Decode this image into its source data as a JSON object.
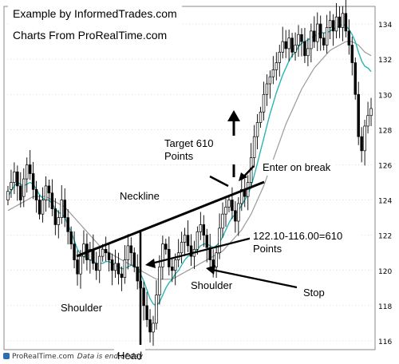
{
  "credits": {
    "line1": "Example by InformedTrades.com",
    "line2": "Charts From ProRealTime.com"
  },
  "footer": {
    "source": "ProRealTime.com",
    "note": "Data is end of day"
  },
  "annotations": {
    "target": "Target 610 Points",
    "enter": "Enter on break",
    "neckline": "Neckline",
    "measure": "122.10-116.00=610 Points",
    "left_shoulder": "Shoulder",
    "right_shoulder": "Shoulder",
    "head": "Head",
    "stop": "Stop"
  },
  "colors": {
    "ma_fast": "#2ab5b5",
    "ma_slow": "#9a9a9a",
    "candle": "#000000",
    "grid": "#c8c8c8",
    "annotation": "#000000"
  },
  "chart_data": {
    "type": "candlestick",
    "yaxis": {
      "ylim": [
        115.5,
        135
      ],
      "ticks": [
        116,
        118,
        120,
        122,
        124,
        126,
        128,
        130,
        132,
        134
      ]
    },
    "grid": true,
    "series": [
      {
        "label": "close",
        "values": [
          124.5,
          125.0,
          125.6,
          124.8,
          124.0,
          125.2,
          126.0,
          125.5,
          124.6,
          124.0,
          123.2,
          124.0,
          124.8,
          124.4,
          123.5,
          122.6,
          123.0,
          124.0,
          123.0,
          122.2,
          121.5,
          120.6,
          119.8,
          120.8,
          121.5,
          120.6,
          121.2,
          120.4,
          120.0,
          120.8,
          121.2,
          121.0,
          120.6,
          120.0,
          120.4,
          119.8,
          119.6,
          120.6,
          121.4,
          121.0,
          120.2,
          119.4,
          119.0,
          118.0,
          117.2,
          116.5,
          117.0,
          118.6,
          120.2,
          121.5,
          121.2,
          120.2,
          120.0,
          120.6,
          121.0,
          121.6,
          122.0,
          121.4,
          120.8,
          121.2,
          122.2,
          122.6,
          122.0,
          121.3,
          120.6,
          120.2,
          121.0,
          122.4,
          123.2,
          123.6,
          124.0,
          123.4,
          122.8,
          123.8,
          124.6,
          124.2,
          125.0,
          126.4,
          127.6,
          128.4,
          129.0,
          130.0,
          130.6,
          131.0,
          131.4,
          131.8,
          132.4,
          133.0,
          132.6,
          133.2,
          132.4,
          132.8,
          133.4,
          133.0,
          132.2,
          132.6,
          133.6,
          133.0,
          134.0,
          133.2,
          132.8,
          133.8,
          134.2,
          133.6,
          134.4,
          133.8,
          134.6,
          133.6,
          132.8,
          131.8,
          130.0,
          127.6,
          126.8,
          128.2,
          128.8,
          129.2
        ]
      },
      {
        "label": "open",
        "values": [
          124.0,
          124.6,
          125.0,
          125.6,
          124.8,
          124.2,
          125.2,
          126.0,
          125.5,
          124.6,
          124.0,
          123.2,
          124.0,
          124.8,
          124.4,
          123.5,
          122.6,
          123.0,
          124.0,
          123.0,
          122.2,
          121.5,
          120.6,
          119.8,
          120.8,
          121.5,
          120.6,
          121.2,
          120.4,
          120.0,
          120.8,
          121.2,
          121.0,
          120.6,
          120.0,
          120.4,
          119.8,
          119.6,
          120.6,
          121.4,
          121.0,
          120.2,
          119.4,
          119.0,
          118.0,
          117.2,
          116.5,
          117.0,
          118.6,
          120.2,
          121.5,
          121.2,
          120.2,
          120.0,
          120.6,
          121.0,
          121.6,
          122.0,
          121.4,
          120.8,
          121.2,
          122.2,
          122.6,
          122.0,
          121.3,
          120.6,
          120.2,
          121.0,
          122.4,
          123.2,
          123.6,
          124.0,
          123.4,
          122.8,
          123.8,
          124.6,
          124.2,
          125.0,
          126.4,
          127.6,
          128.4,
          129.0,
          130.0,
          130.6,
          131.0,
          131.4,
          131.8,
          132.4,
          133.0,
          132.6,
          133.2,
          132.4,
          132.8,
          133.4,
          133.0,
          132.2,
          132.6,
          133.6,
          133.0,
          134.0,
          133.2,
          132.8,
          133.8,
          134.2,
          133.6,
          134.4,
          133.8,
          134.6,
          133.6,
          132.8,
          131.8,
          130.0,
          127.6,
          126.8,
          128.2,
          128.8
        ]
      },
      {
        "label": "MA fast",
        "values": [
          124.2,
          124.5,
          124.8,
          125.0,
          124.9,
          124.8,
          124.9,
          125.0,
          124.9,
          124.6,
          124.3,
          124.1,
          124.0,
          124.0,
          123.8,
          123.5,
          123.3,
          123.2,
          123.0,
          122.6,
          122.2,
          121.7,
          121.2,
          120.9,
          120.8,
          120.7,
          120.6,
          120.5,
          120.4,
          120.4,
          120.4,
          120.5,
          120.5,
          120.4,
          120.3,
          120.2,
          120.1,
          120.1,
          120.2,
          120.3,
          120.3,
          120.1,
          119.8,
          119.4,
          118.9,
          118.4,
          118.1,
          118.0,
          118.2,
          118.6,
          119.0,
          119.3,
          119.5,
          119.8,
          120.0,
          120.3,
          120.6,
          120.8,
          120.9,
          121.0,
          121.2,
          121.4,
          121.5,
          121.5,
          121.4,
          121.3,
          121.4,
          121.6,
          121.9,
          122.3,
          122.7,
          123.0,
          123.2,
          123.4,
          123.7,
          124.0,
          124.3,
          124.8,
          125.4,
          126.1,
          126.8,
          127.5,
          128.2,
          128.9,
          129.5,
          130.1,
          130.6,
          131.1,
          131.5,
          131.9,
          132.2,
          132.4,
          132.7,
          132.9,
          133.0,
          133.1,
          133.2,
          133.3,
          133.4,
          133.5,
          133.5,
          133.5,
          133.6,
          133.7,
          133.8,
          133.9,
          134.0,
          133.9,
          133.7,
          133.4,
          133.0,
          132.4,
          131.9,
          131.6,
          131.5,
          131.3
        ]
      },
      {
        "label": "MA slow",
        "values": [
          123.4,
          123.5,
          123.6,
          123.7,
          123.8,
          123.9,
          124.0,
          124.1,
          124.2,
          124.2,
          124.2,
          124.2,
          124.2,
          124.1,
          124.0,
          123.9,
          123.8,
          123.7,
          123.6,
          123.4,
          123.2,
          123.0,
          122.8,
          122.6,
          122.4,
          122.2,
          122.0,
          121.8,
          121.6,
          121.4,
          121.2,
          121.1,
          121.0,
          120.9,
          120.8,
          120.7,
          120.6,
          120.5,
          120.4,
          120.3,
          120.2,
          120.1,
          120.0,
          119.9,
          119.8,
          119.7,
          119.6,
          119.5,
          119.5,
          119.5,
          119.5,
          119.5,
          119.5,
          119.6,
          119.7,
          119.8,
          119.9,
          120.0,
          120.1,
          120.2,
          120.3,
          120.4,
          120.5,
          120.6,
          120.7,
          120.8,
          120.9,
          121.0,
          121.1,
          121.3,
          121.5,
          121.7,
          121.9,
          122.1,
          122.3,
          122.6,
          122.9,
          123.2,
          123.6,
          124.0,
          124.4,
          124.8,
          125.3,
          125.8,
          126.3,
          126.8,
          127.3,
          127.8,
          128.3,
          128.7,
          129.1,
          129.5,
          129.9,
          130.3,
          130.6,
          130.9,
          131.2,
          131.5,
          131.7,
          131.9,
          132.1,
          132.3,
          132.5,
          132.6,
          132.7,
          132.8,
          132.9,
          133.0,
          133.0,
          133.0,
          132.9,
          132.8,
          132.6,
          132.4,
          132.3,
          132.2
        ]
      }
    ],
    "high_extra": 0.6,
    "low_extra": 0.6
  }
}
